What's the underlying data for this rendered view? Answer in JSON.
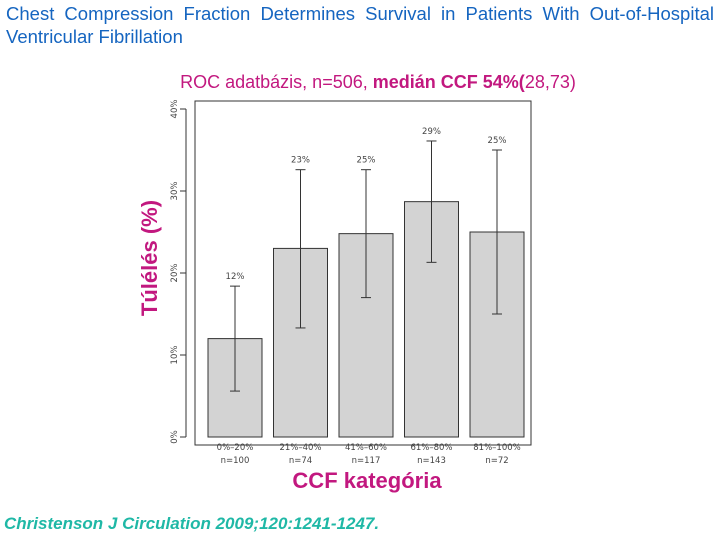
{
  "slide": {
    "title": "Chest Compression Fraction Determines Survival in Patients With Out-of-Hospital Ventricular Fibrillation",
    "subtitle_normal": "ROC adatbázis, n=506,",
    "subtitle_bold": "medián CCF 54%(",
    "subtitle_end": "28,73)",
    "citation": "Christenson J Circulation 2009;120:1241-1247."
  },
  "chart_data": {
    "type": "bar",
    "xlabel": "CCF kategória",
    "ylabel": "Túlélés (%)",
    "ylim": [
      0,
      40
    ],
    "yticks": [
      0,
      10,
      20,
      30,
      40
    ],
    "ytick_labels": [
      "0%",
      "10%",
      "20%",
      "30%",
      "40%"
    ],
    "categories": [
      "0%–20%",
      "21%–40%",
      "41%–60%",
      "61%–80%",
      "81%–100%"
    ],
    "n_labels": [
      "n=100",
      "n=74",
      "n=117",
      "n=143",
      "n=72"
    ],
    "values": [
      12,
      23,
      24.8,
      28.7,
      25
    ],
    "value_labels": [
      "12%",
      "23%",
      "25%",
      "29%",
      "25%"
    ],
    "ci_low": [
      5.6,
      13.3,
      17,
      21.3,
      15
    ],
    "ci_high": [
      18.4,
      32.6,
      32.6,
      36.1,
      35
    ],
    "colors": {
      "bar_fill": "#d3d3d3",
      "bar_stroke": "#333333"
    },
    "grid": false
  }
}
